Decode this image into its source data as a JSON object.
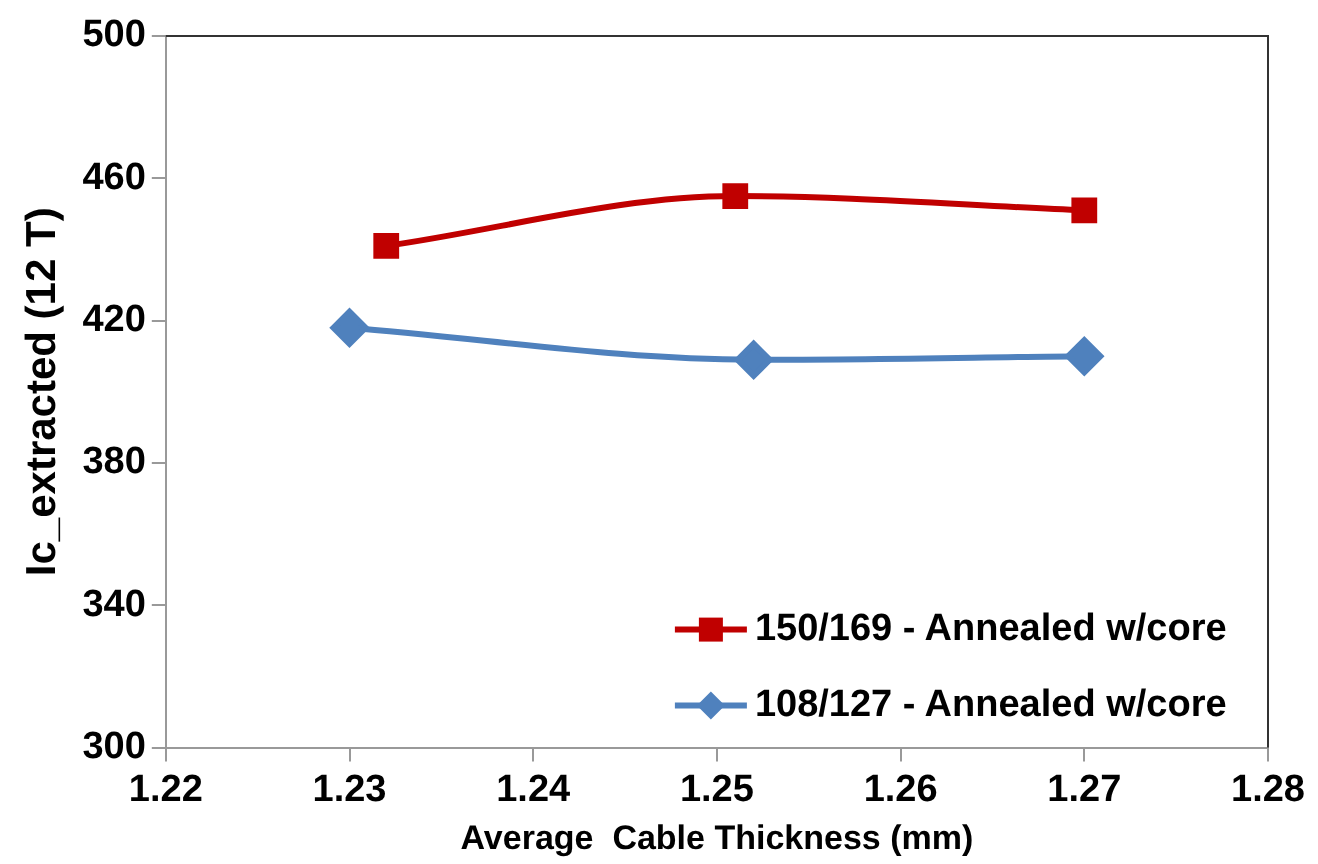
{
  "chart_data": {
    "type": "line",
    "xlabel": "Average  Cable Thickness (mm)",
    "ylabel": "Ic_extracted (12 T)",
    "xlim": [
      1.22,
      1.28
    ],
    "xticks": [
      1.22,
      1.23,
      1.24,
      1.25,
      1.26,
      1.27,
      1.28
    ],
    "ylim": [
      300,
      500
    ],
    "yticks": [
      300,
      340,
      380,
      420,
      460,
      500
    ],
    "grid": false,
    "legend": "bottom right",
    "line_style": "solid",
    "series": [
      {
        "name": "150/169 - Annealed w/core",
        "color": "#c00000",
        "marker": "square",
        "x": [
          1.232,
          1.251,
          1.27
        ],
        "values": [
          441,
          455,
          451
        ]
      },
      {
        "name": "108/127 - Annealed w/core",
        "color": "#4f81bd",
        "marker": "diamond",
        "x": [
          1.23,
          1.252,
          1.27
        ],
        "values": [
          418,
          409,
          410
        ]
      }
    ]
  }
}
